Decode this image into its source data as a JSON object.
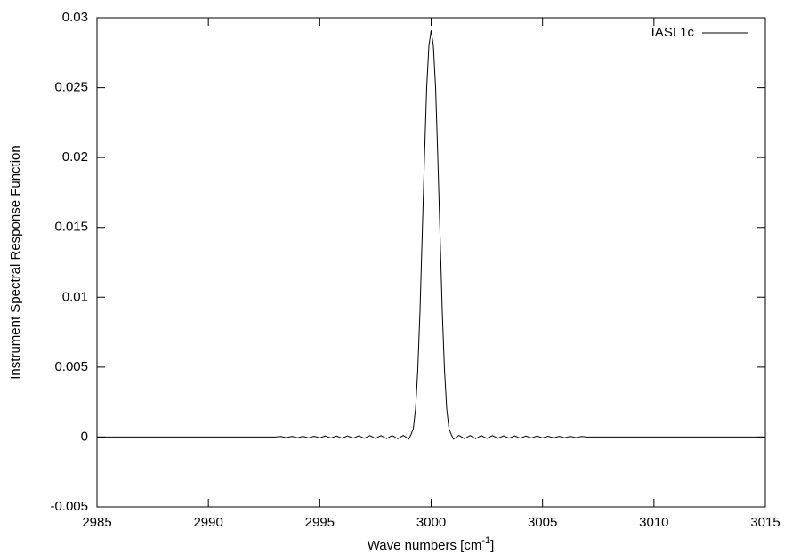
{
  "chart_data": {
    "type": "line",
    "xlabel": {
      "text": "Wave numbers [cm",
      "sup": "-1",
      "suffix": "]"
    },
    "ylabel": "Instrument Spectral Response Function",
    "legend": "upper right",
    "xlim": [
      2985,
      3015
    ],
    "xticks": [
      2985,
      2990,
      2995,
      3000,
      3005,
      3010,
      3015
    ],
    "ylim": [
      -0.005,
      0.03
    ],
    "yticks": [
      -0.005,
      0,
      0.005,
      0.01,
      0.015,
      0.02,
      0.025,
      0.03
    ],
    "x": [
      2985,
      2993,
      2993.25,
      2993.5,
      2993.75,
      2994,
      2994.25,
      2994.5,
      2994.75,
      2995,
      2995.25,
      2995.5,
      2995.75,
      2996,
      2996.25,
      2996.5,
      2996.75,
      2997,
      2997.25,
      2997.5,
      2997.75,
      2998,
      2998.25,
      2998.5,
      2998.75,
      2999,
      2999.1,
      2999.2,
      2999.3,
      2999.4,
      2999.5,
      2999.6,
      2999.7,
      2999.8,
      2999.9,
      3000,
      3000.1,
      3000.2,
      3000.3,
      3000.4,
      3000.5,
      3000.6,
      3000.7,
      3000.8,
      3000.9,
      3001,
      3001.25,
      3001.5,
      3001.75,
      3002,
      3002.25,
      3002.5,
      3002.75,
      3003,
      3003.25,
      3003.5,
      3003.75,
      3004,
      3004.25,
      3004.5,
      3004.75,
      3005,
      3005.25,
      3005.5,
      3005.75,
      3006,
      3006.25,
      3006.5,
      3006.75,
      3007,
      3015
    ],
    "series": [
      {
        "name": "IASI 1c",
        "color": "#000000",
        "values": [
          0,
          0,
          4e-05,
          -4e-05,
          5e-05,
          -5e-05,
          5e-05,
          -6e-05,
          6e-05,
          -6e-05,
          7e-05,
          -7e-05,
          7e-05,
          -8e-05,
          8e-05,
          -8e-05,
          9e-05,
          -9e-05,
          0.0001,
          -0.0001,
          0.0001,
          -0.00011,
          0.00011,
          -0.00012,
          0.00012,
          -0.00015,
          0.0002,
          0.0006,
          0.002,
          0.0048,
          0.009,
          0.0145,
          0.02,
          0.025,
          0.028,
          0.0291,
          0.028,
          0.025,
          0.02,
          0.0145,
          0.009,
          0.0048,
          0.002,
          0.0006,
          0.0002,
          -0.00015,
          0.00012,
          -0.00012,
          0.00011,
          -0.00011,
          0.0001,
          -0.0001,
          0.0001,
          -9e-05,
          9e-05,
          -8e-05,
          8e-05,
          -8e-05,
          7e-05,
          -7e-05,
          7e-05,
          -6e-05,
          6e-05,
          -6e-05,
          5e-05,
          -5e-05,
          5e-05,
          -4e-05,
          4e-05,
          0,
          0
        ]
      }
    ]
  }
}
